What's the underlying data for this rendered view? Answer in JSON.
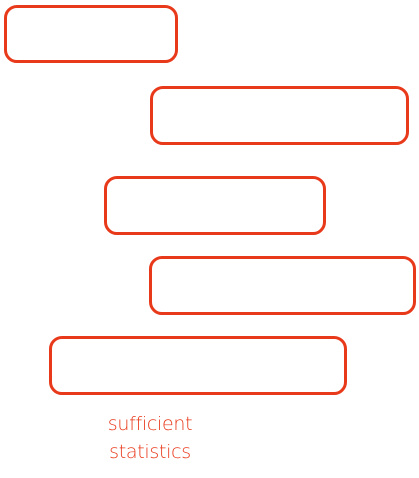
{
  "diagram": {
    "accent_color": "#e8391b",
    "boxes": [
      {
        "label": ""
      },
      {
        "label": ""
      },
      {
        "label": ""
      },
      {
        "label": ""
      },
      {
        "label": ""
      }
    ],
    "caption": {
      "line1": "sufficient",
      "line2": "statistics"
    }
  }
}
